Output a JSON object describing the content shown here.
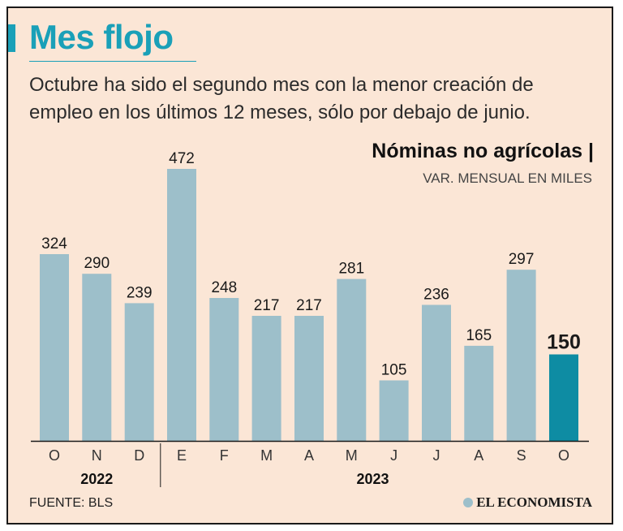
{
  "header": {
    "title": "Mes flojo",
    "subtitle": "Octubre ha sido el segundo mes con la menor creación de empleo en los últimos 12 meses, sólo por debajo de junio."
  },
  "chart_data": {
    "type": "bar",
    "title": "Nóminas no agrícolas |",
    "ylabel": "VAR. MENSUAL EN MILES",
    "categories": [
      "O",
      "N",
      "D",
      "E",
      "F",
      "M",
      "A",
      "M",
      "J",
      "J",
      "A",
      "S",
      "O"
    ],
    "values": [
      324,
      290,
      239,
      472,
      248,
      217,
      217,
      281,
      105,
      236,
      165,
      297,
      150
    ],
    "highlight_index": 12,
    "year_groups": [
      {
        "label": "2022",
        "start": 0,
        "end": 2
      },
      {
        "label": "2023",
        "start": 3,
        "end": 12
      }
    ],
    "ylim": [
      0,
      472
    ],
    "colors": {
      "bar": "#9dbfca",
      "highlight": "#0e8ca3"
    }
  },
  "footer": {
    "source": "FUENTE: BLS",
    "brand": "EL ECONOMISTA"
  }
}
